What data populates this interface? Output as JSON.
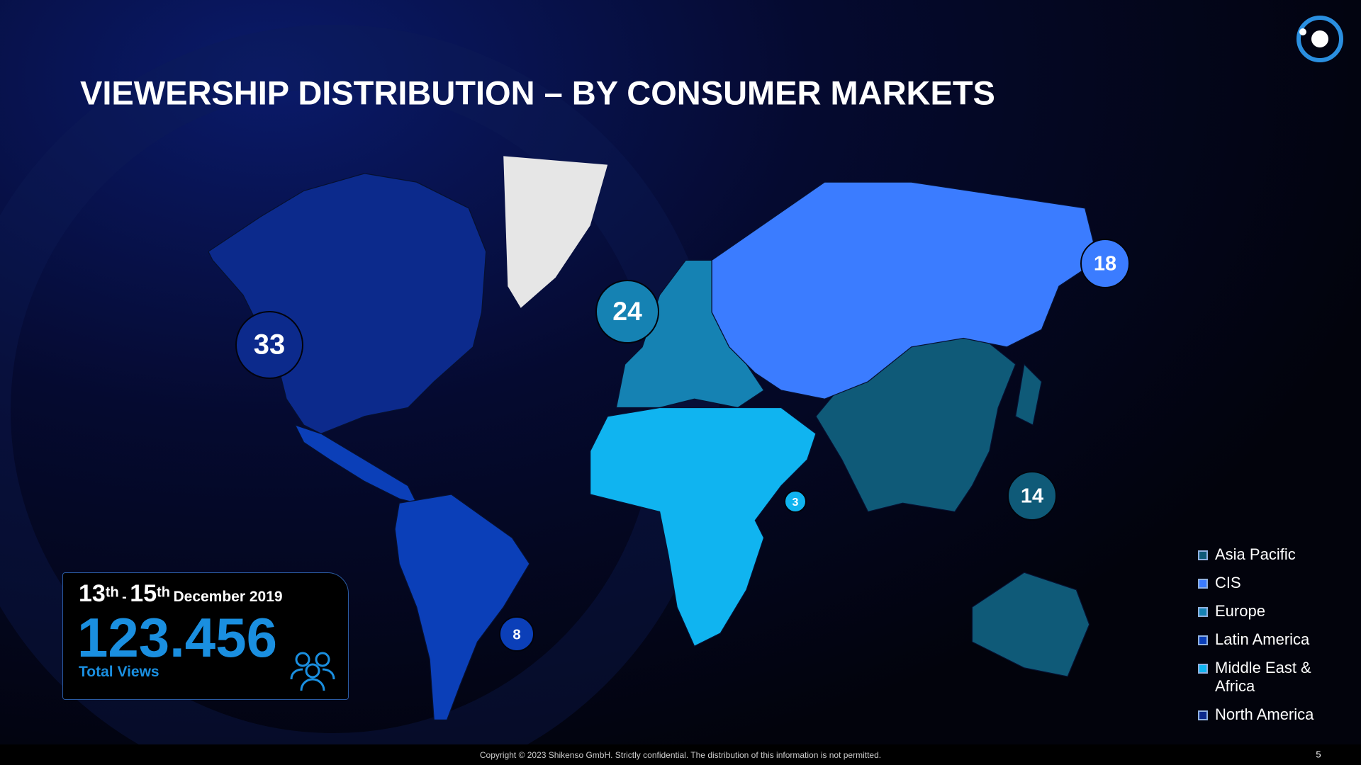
{
  "header": {
    "title": "VIEWERSHIP DISTRIBUTION – BY CONSUMER MARKETS"
  },
  "regions": [
    {
      "name": "Asia Pacific",
      "color": "#0f5a78",
      "value": 14
    },
    {
      "name": "CIS",
      "color": "#3b7cff",
      "value": 18
    },
    {
      "name": "Europe",
      "color": "#1582b3",
      "value": 24
    },
    {
      "name": "Latin America",
      "color": "#0b3fb8",
      "value": 8
    },
    {
      "name": "Middle East & Africa",
      "color": "#10b4f0",
      "value": 3
    },
    {
      "name": "North America",
      "color": "#0c2a8c",
      "value": 33
    }
  ],
  "period": {
    "start_day": "13",
    "start_suffix": "th",
    "separator": "-",
    "end_day": "15",
    "end_suffix": "th",
    "month_year": "December 2019"
  },
  "total_views": {
    "value": "123.456",
    "label": "Total Views"
  },
  "footer": {
    "copyright": "Copyright  © 2023 Shikenso GmbH. Strictly confidential. The distribution of this information is not permitted.",
    "page": "5"
  }
}
